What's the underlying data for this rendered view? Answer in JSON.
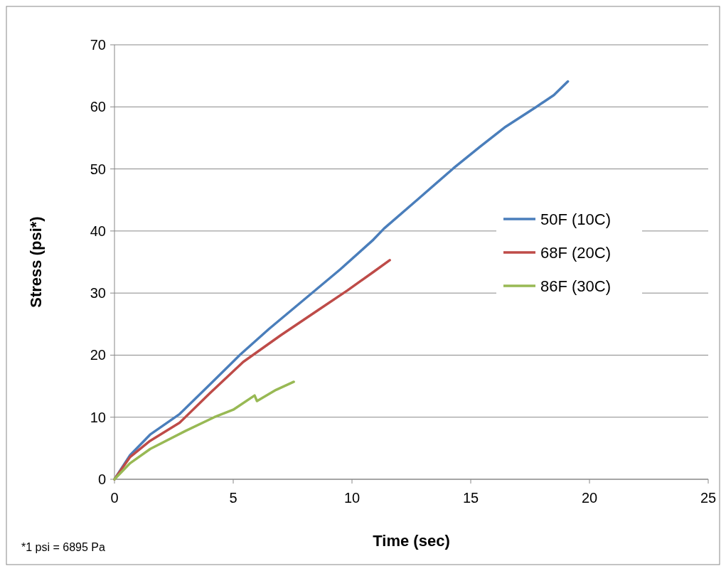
{
  "chart_data": {
    "type": "line",
    "xlabel": "Time (sec)",
    "ylabel": "Stress (psi*)",
    "annotations": [
      "*1 psi = 6895 Pa"
    ],
    "xlim": [
      0,
      25
    ],
    "ylim": [
      0,
      70
    ],
    "xticks": [
      0,
      5,
      10,
      15,
      20,
      25
    ],
    "yticks": [
      0,
      10,
      20,
      30,
      40,
      50,
      60,
      70
    ],
    "grid": "y",
    "legend": "right",
    "marker": "none",
    "line_style": "solid",
    "series": [
      {
        "name": "50F (10C)",
        "color": "#4a7ebb",
        "x": [
          0,
          0.66,
          1.5,
          2.74,
          4,
          5.3,
          6.5,
          8.22,
          9.5,
          10.9,
          11.35,
          12.8,
          14.27,
          15.4,
          16.47,
          17.8,
          18.5,
          19.09
        ],
        "values": [
          0,
          3.9,
          7.2,
          10.5,
          15.2,
          20.1,
          24.2,
          29.7,
          33.8,
          38.6,
          40.4,
          45.2,
          50.1,
          53.6,
          56.8,
          60.1,
          61.9,
          64.1
        ]
      },
      {
        "name": "68F (20C)",
        "color": "#be4b48",
        "x": [
          0,
          0.66,
          1.5,
          2.74,
          4,
          5.42,
          7,
          8.59,
          9.8,
          10.9,
          11.59
        ],
        "values": [
          0,
          3.6,
          6.2,
          9.1,
          13.8,
          18.9,
          23.2,
          27.3,
          30.4,
          33.4,
          35.3
        ]
      },
      {
        "name": "86F (30C)",
        "color": "#98b954",
        "x": [
          0,
          0.66,
          1.51,
          3,
          4.2,
          5,
          5.9,
          6.0,
          6.8,
          7.55
        ],
        "values": [
          0,
          2.6,
          4.9,
          7.8,
          10.0,
          11.2,
          13.5,
          12.6,
          14.4,
          15.7
        ]
      }
    ]
  }
}
